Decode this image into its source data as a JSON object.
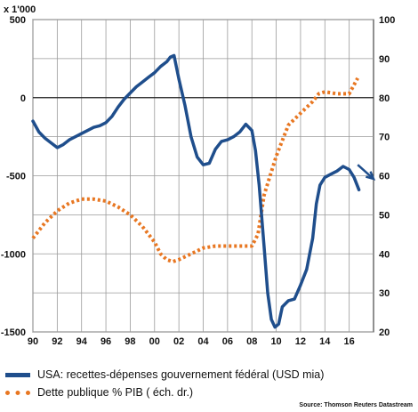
{
  "chart_data": {
    "type": "line",
    "left_axis_unit_label": "x 1'000",
    "x_ticks": [
      "90",
      "92",
      "94",
      "96",
      "98",
      "00",
      "02",
      "04",
      "06",
      "08",
      "10",
      "12",
      "14",
      "16"
    ],
    "x_range": [
      1990,
      2018
    ],
    "y_left": {
      "range": [
        -1500,
        500
      ],
      "ticks": [
        "500",
        "0",
        "-500",
        "-1000",
        "-1500"
      ]
    },
    "y_right": {
      "range": [
        20,
        100
      ],
      "ticks": [
        "100",
        "90",
        "80",
        "70",
        "60",
        "50",
        "40",
        "30",
        "20"
      ]
    },
    "grid": true,
    "legend_placement": "bottom",
    "series": [
      {
        "name": "USA: recettes-dépenses gouvernement fédéral (USD mia)",
        "axis": "left",
        "color": "#1f4e8c",
        "style": "solid",
        "x": [
          1990,
          1990.5,
          1991,
          1991.5,
          1992,
          1992.5,
          1993,
          1993.5,
          1994,
          1994.5,
          1995,
          1995.5,
          1996,
          1996.5,
          1997,
          1997.5,
          1998,
          1998.5,
          1999,
          1999.5,
          2000,
          2000.5,
          2001,
          2001.3,
          2001.6,
          2002,
          2002.5,
          2003,
          2003.5,
          2004,
          2004.5,
          2005,
          2005.5,
          2006,
          2006.5,
          2007,
          2007.5,
          2008,
          2008.3,
          2008.6,
          2009,
          2009.3,
          2009.6,
          2009.9,
          2010.2,
          2010.5,
          2011,
          2011.5,
          2012,
          2012.5,
          2013,
          2013.3,
          2013.6,
          2014,
          2014.5,
          2015,
          2015.5,
          2016,
          2016.4,
          2016.8
        ],
        "y": [
          -150,
          -220,
          -260,
          -290,
          -320,
          -300,
          -270,
          -250,
          -230,
          -210,
          -190,
          -180,
          -160,
          -120,
          -60,
          -10,
          30,
          70,
          100,
          130,
          160,
          200,
          230,
          260,
          270,
          120,
          -50,
          -250,
          -380,
          -430,
          -420,
          -330,
          -280,
          -270,
          -250,
          -220,
          -170,
          -210,
          -340,
          -560,
          -950,
          -1250,
          -1420,
          -1470,
          -1450,
          -1340,
          -1300,
          -1290,
          -1200,
          -1100,
          -900,
          -680,
          -560,
          -510,
          -490,
          -470,
          -440,
          -460,
          -510,
          -590
        ]
      },
      {
        "name": "Dette publique % PIB ( éch. dr.)",
        "axis": "right",
        "color": "#e87722",
        "style": "dotted",
        "x": [
          1990,
          1991,
          1992,
          1993,
          1994,
          1995,
          1996,
          1997,
          1998,
          1999,
          2000,
          2000.5,
          2001,
          2001.5,
          2002,
          2003,
          2004,
          2005,
          2006,
          2007,
          2008,
          2008.5,
          2009,
          2009.5,
          2010,
          2010.5,
          2011,
          2012,
          2013,
          2013.5,
          2014,
          2015,
          2016,
          2016.7
        ],
        "y": [
          44,
          48,
          51,
          53,
          54,
          54,
          53.5,
          52,
          50,
          47,
          43,
          40,
          38.5,
          38,
          38.5,
          40,
          41.5,
          42,
          42,
          42,
          42,
          45,
          55,
          60,
          65,
          69,
          73,
          76,
          79,
          81,
          81.5,
          81,
          81,
          85
        ]
      }
    ],
    "annotations": [
      {
        "type": "arrow",
        "from": [
          2016.7,
          -430
        ],
        "to": [
          2018,
          -520
        ],
        "color": "#1f4e8c"
      }
    ]
  },
  "legend": {
    "items": [
      {
        "label": "USA: recettes-dépenses gouvernement fédéral (USD mia)"
      },
      {
        "label": "Dette publique % PIB ( éch. dr.)"
      }
    ]
  },
  "source": "Source: Thomson Reuters Datastream"
}
